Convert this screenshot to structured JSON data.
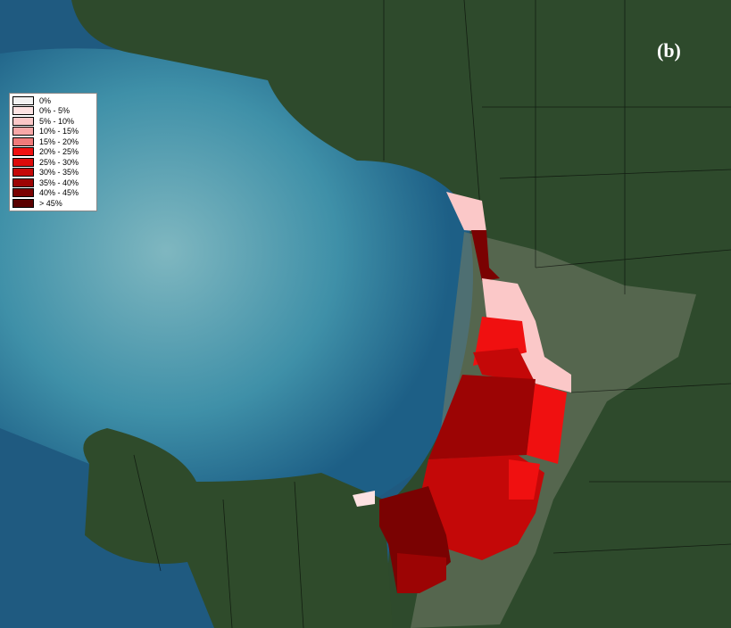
{
  "panel_label": "(b)",
  "legend": {
    "items": [
      {
        "label": "0%",
        "color": "#f2f2f2"
      },
      {
        "label": "0% - 5%",
        "color": "#fde2e2"
      },
      {
        "label": "5% - 10%",
        "color": "#fbc8c8"
      },
      {
        "label": "10% - 15%",
        "color": "#f8a8a8"
      },
      {
        "label": "15% - 20%",
        "color": "#f07a7a"
      },
      {
        "label": "20% - 25%",
        "color": "#f01010"
      },
      {
        "label": "25% - 30%",
        "color": "#dd0a0a"
      },
      {
        "label": "30% - 35%",
        "color": "#c40808"
      },
      {
        "label": "35% - 40%",
        "color": "#9c0404"
      },
      {
        "label": "40% - 45%",
        "color": "#7a0202"
      },
      {
        "label": "> 45%",
        "color": "#5a0000"
      }
    ]
  }
}
